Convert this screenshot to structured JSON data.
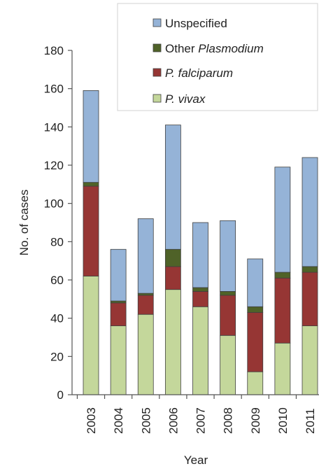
{
  "chart_data": {
    "type": "bar",
    "stacked": true,
    "xlabel": "Year",
    "ylabel": "No. of cases",
    "ylim": [
      0,
      180
    ],
    "yticks": [
      0,
      20,
      40,
      60,
      80,
      100,
      120,
      140,
      160,
      180
    ],
    "grid": false,
    "legend_position": "top-right",
    "categories": [
      "2003",
      "2004",
      "2005",
      "2006",
      "2007",
      "2008",
      "2009",
      "2010",
      "2011"
    ],
    "series": [
      {
        "name": "P. vivax",
        "color": "#c4d79b",
        "values": [
          62,
          36,
          42,
          55,
          46,
          31,
          12,
          27,
          36
        ]
      },
      {
        "name": "P. falciparum",
        "color": "#963634",
        "values": [
          47,
          12,
          10,
          12,
          8,
          21,
          31,
          34,
          28
        ]
      },
      {
        "name": "Other Plasmodium",
        "color": "#4f6228",
        "values": [
          2,
          1,
          1,
          9,
          2,
          2,
          3,
          3,
          3
        ]
      },
      {
        "name": "Unspecified",
        "color": "#95b3d7",
        "values": [
          48,
          27,
          39,
          65,
          34,
          37,
          25,
          55,
          57
        ]
      }
    ],
    "legend": [
      {
        "prefix": "",
        "italic": "",
        "suffix": "Unspecified",
        "color": "#95b3d7"
      },
      {
        "prefix": "Other ",
        "italic": "Plasmodium",
        "suffix": "",
        "color": "#4f6228"
      },
      {
        "prefix": "",
        "italic": "P. falciparum",
        "suffix": "",
        "color": "#963634"
      },
      {
        "prefix": "",
        "italic": "P. vivax",
        "suffix": "",
        "color": "#c4d79b"
      }
    ]
  }
}
